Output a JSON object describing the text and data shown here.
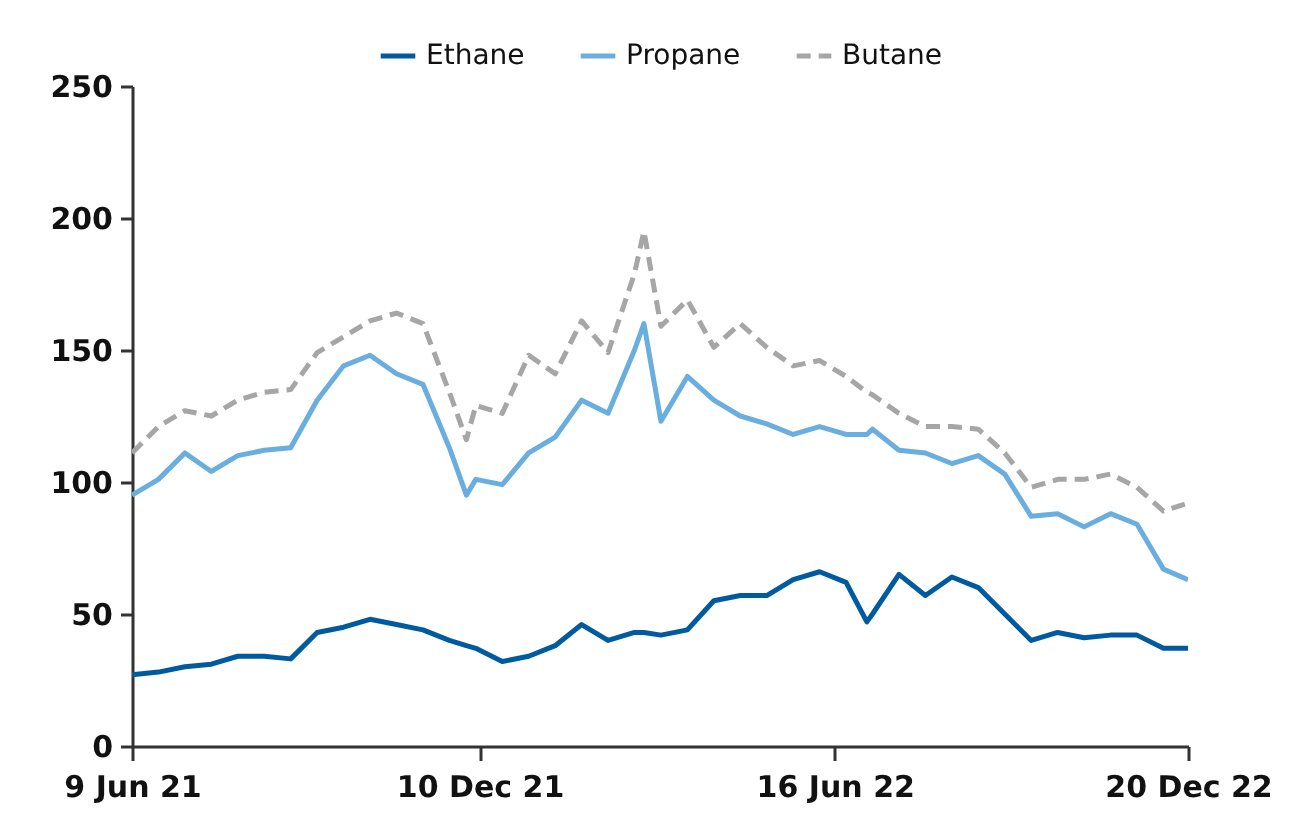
{
  "chart_data": {
    "type": "line",
    "x": [
      "2021-06-09",
      "2021-06-23",
      "2021-07-07",
      "2021-07-21",
      "2021-08-04",
      "2021-08-18",
      "2021-09-01",
      "2021-09-15",
      "2021-09-29",
      "2021-10-13",
      "2021-10-27",
      "2021-11-10",
      "2021-11-24",
      "2021-12-03",
      "2021-12-08",
      "2021-12-22",
      "2022-01-05",
      "2022-01-19",
      "2022-02-02",
      "2022-02-16",
      "2022-03-02",
      "2022-03-07",
      "2022-03-16",
      "2022-03-30",
      "2022-04-13",
      "2022-04-27",
      "2022-05-11",
      "2022-05-25",
      "2022-06-08",
      "2022-06-22",
      "2022-07-03",
      "2022-07-06",
      "2022-07-20",
      "2022-08-03",
      "2022-08-17",
      "2022-08-31",
      "2022-09-14",
      "2022-09-28",
      "2022-10-12",
      "2022-10-26",
      "2022-11-09",
      "2022-11-23",
      "2022-12-07",
      "2022-12-20"
    ],
    "series": [
      {
        "name": "Ethane",
        "color": "#005aa0",
        "line_style": "solid",
        "values": [
          27,
          28,
          30,
          31,
          34,
          34,
          33,
          43,
          45,
          48,
          46,
          44,
          40,
          38,
          37,
          32,
          34,
          38,
          46,
          40,
          43,
          43,
          42,
          44,
          55,
          57,
          57,
          63,
          66,
          62,
          47,
          50,
          65,
          57,
          64,
          60,
          50,
          40,
          43,
          41,
          42,
          42,
          37,
          37
        ]
      },
      {
        "name": "Propane",
        "color": "#6aaee0",
        "line_style": "solid",
        "values": [
          95,
          101,
          111,
          104,
          110,
          112,
          113,
          131,
          144,
          148,
          141,
          137,
          113,
          95,
          101,
          99,
          111,
          117,
          131,
          126,
          150,
          160,
          123,
          140,
          131,
          125,
          122,
          118,
          121,
          118,
          118,
          120,
          112,
          111,
          107,
          110,
          103,
          87,
          88,
          83,
          88,
          84,
          67,
          63
        ]
      },
      {
        "name": "Butane",
        "color": "#a6a6a6",
        "line_style": "dashed",
        "values": [
          111,
          121,
          127,
          125,
          131,
          134,
          135,
          149,
          155,
          161,
          164,
          160,
          134,
          116,
          129,
          126,
          148,
          141,
          161,
          149,
          179,
          195,
          159,
          169,
          151,
          160,
          151,
          144,
          146,
          140,
          134,
          133,
          126,
          121,
          121,
          120,
          111,
          98,
          101,
          101,
          103,
          98,
          89,
          92
        ]
      }
    ],
    "xlim": [
      "2021-06-09",
      "2022-12-20"
    ],
    "xticks": [
      {
        "value": "2021-06-09",
        "label": "9 Jun 21"
      },
      {
        "value": "2021-12-10",
        "label": "10 Dec 21"
      },
      {
        "value": "2022-06-16",
        "label": "16 Jun 22"
      },
      {
        "value": "2022-12-20",
        "label": "20 Dec 22"
      }
    ],
    "ylim": [
      0,
      250
    ],
    "yticks": [
      0,
      50,
      100,
      150,
      200,
      250
    ],
    "legend": "top",
    "grid": false
  }
}
